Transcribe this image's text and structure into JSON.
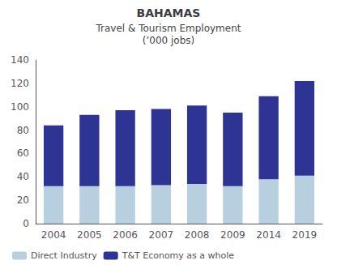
{
  "chart_data": {
    "type": "bar",
    "title": "BAHAMAS",
    "subtitle": [
      "Travel & Tourism Employment",
      "(’000 jobs)"
    ],
    "categories": [
      "2004",
      "2005",
      "2006",
      "2007",
      "2008",
      "2009",
      "2014",
      "2019"
    ],
    "series": [
      {
        "name": "Direct Industry",
        "color": "#b8cfe0",
        "values": [
          32,
          32,
          32,
          33,
          34,
          32,
          38,
          41
        ]
      },
      {
        "name": "T&T Economy as a whole",
        "color": "#2d3494",
        "values": [
          52,
          61,
          65,
          65,
          67,
          63,
          71,
          81
        ]
      }
    ],
    "stacked": true,
    "ylim": [
      0,
      140
    ],
    "yticks": [
      0,
      20,
      40,
      60,
      80,
      100,
      120,
      140
    ],
    "grid": false,
    "legend": "lower left"
  }
}
